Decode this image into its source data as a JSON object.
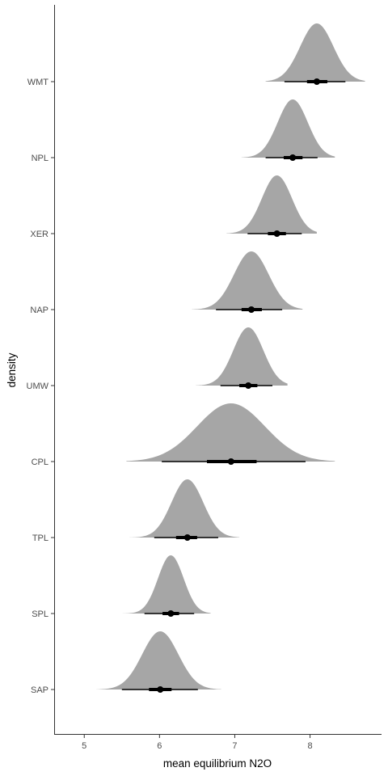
{
  "chart_data": {
    "type": "halfeye",
    "title": "",
    "xlabel": "mean equilibrium N2O",
    "ylabel": "density",
    "xlim": [
      4.6,
      8.95
    ],
    "x_ticks": [
      5,
      6,
      7,
      8
    ],
    "grid": false,
    "legend": "none",
    "colors": {
      "density": "#a6a6a6",
      "interval": "#000000",
      "axis": "#333333"
    },
    "categories": [
      "WMT",
      "NPL",
      "XER",
      "NAP",
      "UMW",
      "CPL",
      "TPL",
      "SPL",
      "SAP"
    ],
    "series": [
      {
        "category": "WMT",
        "median": 8.09,
        "mean": 8.09,
        "sd": 0.22,
        "interval_66": [
          7.96,
          8.23
        ],
        "interval_95": [
          7.66,
          8.47
        ],
        "range": [
          7.41,
          8.73
        ]
      },
      {
        "category": "NPL",
        "median": 7.77,
        "mean": 7.77,
        "sd": 0.2,
        "interval_66": [
          7.65,
          7.9
        ],
        "interval_95": [
          7.41,
          8.1
        ],
        "range": [
          7.09,
          8.33
        ]
      },
      {
        "category": "XER",
        "median": 7.56,
        "mean": 7.56,
        "sd": 0.2,
        "interval_66": [
          7.44,
          7.68
        ],
        "interval_95": [
          7.17,
          7.89
        ],
        "range": [
          6.89,
          8.09
        ]
      },
      {
        "category": "NAP",
        "median": 7.22,
        "mean": 7.22,
        "sd": 0.23,
        "interval_66": [
          7.09,
          7.36
        ],
        "interval_95": [
          6.75,
          7.63
        ],
        "range": [
          6.43,
          7.9
        ]
      },
      {
        "category": "UMW",
        "median": 7.18,
        "mean": 7.18,
        "sd": 0.2,
        "interval_66": [
          7.06,
          7.3
        ],
        "interval_95": [
          6.81,
          7.5
        ],
        "range": [
          6.48,
          7.7
        ]
      },
      {
        "category": "CPL",
        "median": 6.95,
        "mean": 6.95,
        "sd": 0.45,
        "interval_66": [
          6.63,
          7.29
        ],
        "interval_95": [
          6.03,
          7.94
        ],
        "range": [
          5.56,
          8.33
        ]
      },
      {
        "category": "TPL",
        "median": 6.37,
        "mean": 6.37,
        "sd": 0.21,
        "interval_66": [
          6.22,
          6.5
        ],
        "interval_95": [
          5.93,
          6.78
        ],
        "range": [
          5.6,
          7.06
        ]
      },
      {
        "category": "SPL",
        "median": 6.15,
        "mean": 6.15,
        "sd": 0.17,
        "interval_66": [
          6.04,
          6.26
        ],
        "interval_95": [
          5.8,
          6.46
        ],
        "range": [
          5.49,
          6.68
        ]
      },
      {
        "category": "SAP",
        "median": 6.01,
        "mean": 6.01,
        "sd": 0.24,
        "interval_66": [
          5.86,
          6.16
        ],
        "interval_95": [
          5.5,
          6.51
        ],
        "range": [
          5.16,
          6.82
        ]
      }
    ]
  }
}
